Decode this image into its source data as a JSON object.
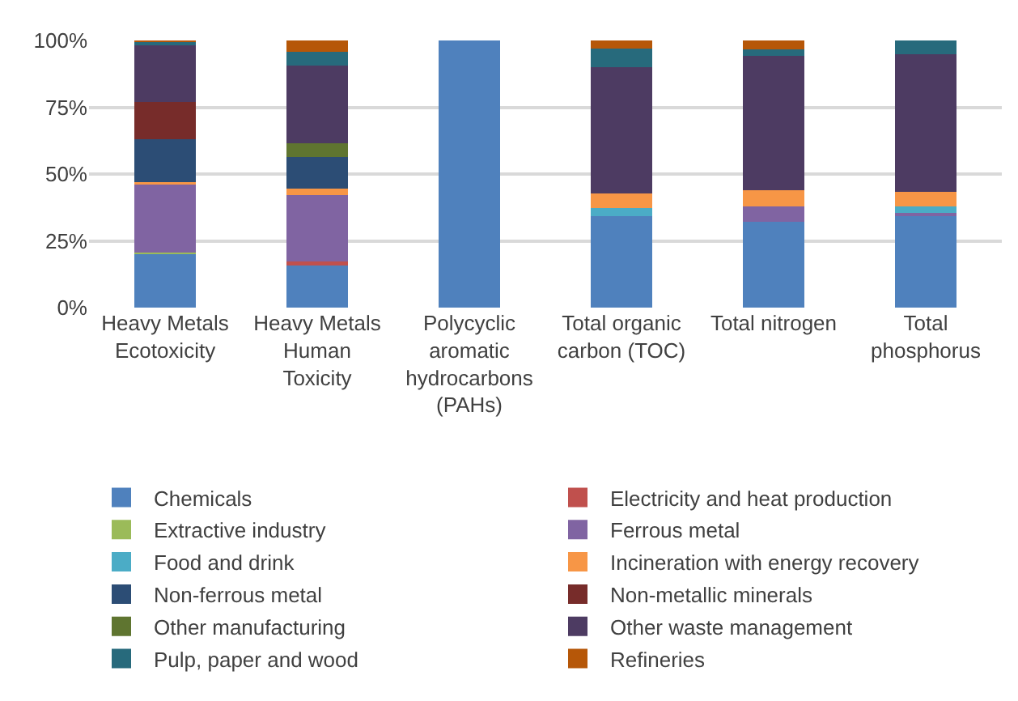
{
  "chart_data": {
    "type": "bar",
    "stacked": true,
    "categories": [
      "Heavy Metals\nEcotoxicity",
      "Heavy Metals\nHuman\nToxicity",
      "Polycyclic\naromatic\nhydrocarbons\n(PAHs)",
      "Total organic\ncarbon (TOC)",
      "Total nitrogen",
      "Total\nphosphorus"
    ],
    "series": [
      {
        "name": "Chemicals",
        "color": "#4f81bd",
        "values": [
          20,
          15.7,
          100,
          34.1,
          32.1,
          34.1
        ]
      },
      {
        "name": "Electricity and heat production",
        "color": "#c0504d",
        "values": [
          null,
          1.5,
          null,
          null,
          null,
          null
        ]
      },
      {
        "name": "Extractive industry",
        "color": "#9bbb59",
        "values": [
          0.5,
          null,
          null,
          null,
          null,
          null
        ]
      },
      {
        "name": "Ferrous metal",
        "color": "#8064a2",
        "values": [
          26,
          25,
          null,
          null,
          5.9,
          1.4
        ]
      },
      {
        "name": "Food and drink",
        "color": "#4bacc6",
        "values": [
          null,
          null,
          null,
          3.2,
          null,
          2.5
        ]
      },
      {
        "name": "Incineration with energy recovery",
        "color": "#f79646",
        "values": [
          0.5,
          2.2,
          null,
          5.3,
          5.9,
          5.2
        ]
      },
      {
        "name": "Non-ferrous metal",
        "color": "#2c4d75",
        "values": [
          16,
          11.9,
          null,
          null,
          null,
          null
        ]
      },
      {
        "name": "Non-metallic minerals",
        "color": "#772c2a",
        "values": [
          14,
          null,
          null,
          null,
          null,
          null
        ]
      },
      {
        "name": "Other manufacturing",
        "color": "#5f7530",
        "values": [
          null,
          5.2,
          null,
          null,
          null,
          null
        ]
      },
      {
        "name": "Other waste management",
        "color": "#4d3b62",
        "values": [
          21.5,
          29.2,
          null,
          47.3,
          50.4,
          51.7
        ]
      },
      {
        "name": "Pulp, paper and wood",
        "color": "#276a7c",
        "values": [
          1.2,
          5.2,
          null,
          7.1,
          2.5,
          5.1
        ]
      },
      {
        "name": "Refineries",
        "color": "#b65708",
        "values": [
          0.3,
          4.1,
          null,
          3,
          3.2,
          null
        ]
      }
    ],
    "ylim": [
      0,
      100
    ],
    "yticks": [
      {
        "value": 0,
        "label": "0%"
      },
      {
        "value": 25,
        "label": "25%"
      },
      {
        "value": 50,
        "label": "50%"
      },
      {
        "value": 75,
        "label": "75%"
      },
      {
        "value": 100,
        "label": "100%"
      }
    ],
    "grid": "y",
    "legend": "bottom"
  }
}
